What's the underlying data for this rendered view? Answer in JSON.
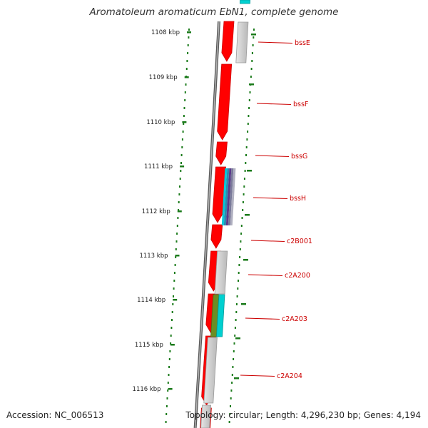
{
  "title": "Aromatoleum aromaticum EbN1, complete genome",
  "footer": {
    "accession": "Accession: NC_006513",
    "topology": "Topology: circular; Length: 4,296,230 bp; Genes: 4,194"
  },
  "colors": {
    "cds_strand": "#ff0000",
    "outline": "#cc0000",
    "backbone": "#888888",
    "gc_skew": "#1a7a1a",
    "label": "#cc0000",
    "cyan": "#00d0d0",
    "olive": "#6b8e23",
    "purple": "#5a3a8a",
    "gray": "#c8c8c8"
  },
  "scale": {
    "ticks": [
      "1108 kbp",
      "1109 kbp",
      "1110 kbp",
      "1111 kbp",
      "1112 kbp",
      "1113 kbp",
      "1114 kbp",
      "1115 kbp",
      "1116 kbp"
    ]
  },
  "genes": [
    "bssE",
    "bssF",
    "bssG",
    "bssH",
    "c2B001",
    "c2A200",
    "c2A203",
    "c2A204"
  ]
}
